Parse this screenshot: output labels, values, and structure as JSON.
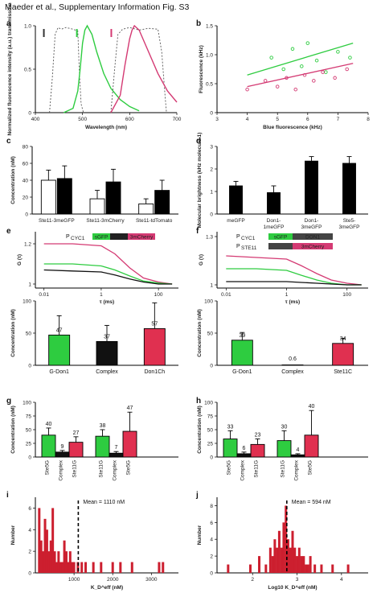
{
  "title": "Maeder et al., Supplementary Information Fig. S3",
  "panel_labels": [
    "a",
    "b",
    "c",
    "d",
    "e",
    "f",
    "g",
    "h",
    "i",
    "j"
  ],
  "colors": {
    "green": "#2ecc40",
    "red": "#e03050",
    "pink": "#d43a73",
    "black": "#111111",
    "grey": "#555555"
  },
  "chart_data": [
    {
      "panel": "a",
      "type": "line",
      "xlabel": "Wavelength (nm)",
      "ylabel": "Normalized fluorescence intensity (a.u.) transmission",
      "xlim": [
        400,
        700
      ],
      "ylim": [
        0,
        1.0
      ],
      "xticks": [
        400,
        500,
        600,
        700
      ],
      "yticks": [
        0,
        0.5,
        1.0
      ],
      "series": [
        {
          "style": "dashed",
          "x": [
            430,
            436,
            442,
            448,
            455,
            465,
            480,
            490,
            493,
            497,
            502
          ],
          "y": [
            0,
            0.4,
            0.9,
            0.98,
            0.96,
            0.98,
            0.96,
            0.94,
            0.5,
            0.1,
            0
          ]
        },
        {
          "style": "green",
          "x": [
            460,
            480,
            490,
            495,
            500,
            505,
            510,
            520,
            530,
            545,
            560,
            580,
            600,
            620
          ],
          "y": [
            0,
            0.05,
            0.25,
            0.5,
            0.8,
            0.95,
            1.0,
            0.9,
            0.7,
            0.45,
            0.28,
            0.15,
            0.07,
            0.02
          ]
        },
        {
          "style": "dashed",
          "x": [
            560,
            568,
            575,
            585,
            600,
            620,
            640,
            660,
            668,
            675,
            678
          ],
          "y": [
            0,
            0.5,
            0.9,
            0.96,
            0.98,
            0.95,
            0.97,
            0.96,
            0.7,
            0.2,
            0
          ]
        },
        {
          "style": "pink",
          "x": [
            560,
            580,
            590,
            600,
            605,
            610,
            620,
            640,
            660,
            680,
            700
          ],
          "y": [
            0,
            0.2,
            0.55,
            0.85,
            0.95,
            1.0,
            0.95,
            0.7,
            0.45,
            0.25,
            0.12
          ]
        }
      ],
      "markers": [
        {
          "x": 418,
          "color": "#333333"
        },
        {
          "x": 488,
          "color": "#2ecc40"
        },
        {
          "x": 561,
          "color": "#d43a73"
        }
      ]
    },
    {
      "panel": "b",
      "type": "scatter",
      "xlabel": "Blue fluorescence (kHz)",
      "ylabel": "Fluorescence (kHz)",
      "xlim": [
        3,
        8
      ],
      "ylim": [
        0,
        1.5
      ],
      "xticks": [
        3,
        4,
        5,
        6,
        7,
        8
      ],
      "yticks": [
        0,
        0.5,
        1.0,
        1.5
      ],
      "series": [
        {
          "color": "green",
          "x": [
            4.8,
            5.2,
            5.5,
            5.8,
            6.0,
            6.3,
            6.6,
            7.0,
            7.4
          ],
          "y": [
            0.95,
            0.75,
            1.1,
            0.8,
            1.2,
            0.9,
            0.7,
            1.05,
            0.95
          ],
          "fit": [
            [
              4,
              0.65
            ],
            [
              7.5,
              1.2
            ]
          ]
        },
        {
          "color": "pink",
          "x": [
            4.0,
            4.6,
            5.0,
            5.3,
            5.6,
            5.9,
            6.2,
            6.5,
            6.9,
            7.3
          ],
          "y": [
            0.4,
            0.55,
            0.45,
            0.6,
            0.4,
            0.65,
            0.55,
            0.7,
            0.6,
            0.75
          ],
          "fit": [
            [
              4,
              0.45
            ],
            [
              7.5,
              0.85
            ]
          ]
        }
      ]
    },
    {
      "panel": "c",
      "type": "bar",
      "ylabel": "Concentration (nM)",
      "ylim": [
        0,
        80
      ],
      "yticks": [
        0,
        20,
        40,
        60,
        80
      ],
      "groups": [
        "Ste11-3meGFP",
        "Ste11-3mCherry",
        "Ste11-tdTomato"
      ],
      "series": [
        {
          "values": [
            40,
            18,
            12
          ],
          "errors": [
            12,
            10,
            6
          ]
        },
        {
          "values": [
            42,
            38,
            28
          ],
          "errors": [
            15,
            15,
            12
          ]
        }
      ]
    },
    {
      "panel": "d",
      "type": "bar",
      "ylabel": "Molecular brightness (kHz molecule-1)",
      "ylim": [
        0,
        3
      ],
      "yticks": [
        0,
        1,
        2,
        3
      ],
      "categories": [
        "meGFP",
        "Don1-1meGFP",
        "Don1-3meGFP",
        "Ste5-3meGFP"
      ],
      "values": [
        1.25,
        0.95,
        2.35,
        2.25
      ],
      "errors": [
        0.2,
        0.3,
        0.2,
        0.3
      ]
    },
    {
      "panel": "e",
      "type": "line",
      "xlabel": "τ (ms)",
      "ylabel": "G (τ)",
      "yticks": [
        1,
        1.2
      ],
      "xticks": [
        "0.01",
        "1",
        "100"
      ],
      "legend": [
        "P",
        "CYC1",
        "sGFP",
        "DON1",
        "3mCherry"
      ],
      "series": [
        {
          "color": "pink",
          "x": [
            0.01,
            0.1,
            1,
            3,
            10,
            30,
            100,
            300
          ],
          "y": [
            1.2,
            1.2,
            1.19,
            1.15,
            1.08,
            1.03,
            1.01,
            1.0
          ]
        },
        {
          "color": "green",
          "x": [
            0.01,
            0.1,
            1,
            3,
            10,
            30,
            100,
            300
          ],
          "y": [
            1.1,
            1.1,
            1.09,
            1.07,
            1.04,
            1.015,
            1.005,
            1.0
          ]
        },
        {
          "color": "black",
          "x": [
            0.01,
            0.1,
            1,
            3,
            10,
            30,
            100,
            300
          ],
          "y": [
            1.07,
            1.065,
            1.06,
            1.045,
            1.025,
            1.01,
            1.0,
            1.0
          ]
        }
      ]
    },
    {
      "panel": "e-bar",
      "type": "bar",
      "ylabel": "Concentration (nM)",
      "ylim": [
        0,
        100
      ],
      "yticks": [
        0,
        50,
        100
      ],
      "categories": [
        "G-Don1",
        "Complex",
        "Don1Ch"
      ],
      "values": [
        47,
        37,
        57
      ],
      "errors": [
        30,
        25,
        40
      ]
    },
    {
      "panel": "f",
      "type": "line",
      "xlabel": "τ (ms)",
      "ylabel": "G (τ)",
      "yticks": [
        1,
        1.3
      ],
      "xticks": [
        "0.01",
        "1",
        "100"
      ],
      "legend": [
        "P",
        "CYC1",
        "sGFP",
        "DON1",
        "P",
        "STE11",
        "3mCherry"
      ],
      "series": [
        {
          "color": "pink",
          "x": [
            0.01,
            0.1,
            1,
            3,
            10,
            30,
            100,
            300
          ],
          "y": [
            1.18,
            1.17,
            1.16,
            1.12,
            1.07,
            1.03,
            1.01,
            1.0
          ]
        },
        {
          "color": "green",
          "x": [
            0.01,
            0.1,
            1,
            3,
            10,
            30,
            100,
            300
          ],
          "y": [
            1.1,
            1.1,
            1.09,
            1.06,
            1.03,
            1.01,
            1.0,
            1.0
          ]
        },
        {
          "color": "black",
          "x": [
            0.01,
            0.1,
            1,
            3,
            10,
            30,
            100,
            300
          ],
          "y": [
            1.02,
            1.02,
            1.02,
            1.015,
            1.01,
            1.005,
            1.0,
            1.0
          ]
        }
      ]
    },
    {
      "panel": "f-bar",
      "type": "bar",
      "ylabel": "Concentration (nM)",
      "ylim": [
        0,
        100
      ],
      "yticks": [
        0,
        50,
        100
      ],
      "categories": [
        "G-Don1",
        "Complex",
        "Ste11C"
      ],
      "values": [
        39,
        0.6,
        34
      ],
      "errors": [
        12,
        0,
        8
      ]
    },
    {
      "panel": "g",
      "type": "bar",
      "ylabel": "Concentration (nM)",
      "ylim": [
        0,
        100
      ],
      "yticks": [
        0,
        25,
        50,
        75,
        100
      ],
      "categories": [
        "Ste5G",
        "Complex",
        "Ste11G",
        "Ste11G",
        "Complex",
        "Ste5G"
      ],
      "values": [
        40,
        9,
        27,
        38,
        7,
        47
      ],
      "errors": [
        13,
        3,
        10,
        12,
        3,
        35
      ]
    },
    {
      "panel": "h",
      "type": "bar",
      "ylabel": "Concentration (nM)",
      "ylim": [
        0,
        100
      ],
      "yticks": [
        0,
        25,
        50,
        75,
        100
      ],
      "categories": [
        "Ste5G",
        "Complex",
        "Ste11G",
        "Ste11G",
        "Complex",
        "Ste5G"
      ],
      "values": [
        33,
        6,
        23,
        30,
        4,
        40
      ],
      "errors": [
        15,
        3,
        10,
        18,
        2,
        45
      ]
    },
    {
      "panel": "i",
      "type": "bar",
      "xlabel": "K_D^eff (nM)",
      "ylabel": "Number",
      "xlim": [
        0,
        3700
      ],
      "ylim": [
        0,
        7
      ],
      "xticks": [
        1000,
        2000,
        3000
      ],
      "yticks": [
        0,
        2,
        4,
        6
      ],
      "annotation": "Mean = 1110 nM",
      "mean": 1110,
      "bins": [
        100,
        150,
        200,
        250,
        300,
        350,
        400,
        450,
        500,
        550,
        600,
        650,
        700,
        750,
        800,
        850,
        900,
        950,
        1000,
        1100,
        1200,
        1300,
        1500,
        1700,
        2000,
        2200,
        2500,
        3200,
        3300
      ],
      "values": [
        6,
        3,
        2,
        5,
        4,
        2,
        3,
        6,
        2,
        1,
        2,
        1,
        1,
        3,
        2,
        1,
        2,
        1,
        1,
        1,
        1,
        1,
        1,
        1,
        1,
        1,
        1,
        1,
        1
      ]
    },
    {
      "panel": "j",
      "type": "bar",
      "xlabel": "Log10 K_D^eff (nM)",
      "ylabel": "Number",
      "xlim": [
        1.2,
        4.6
      ],
      "ylim": [
        0,
        9
      ],
      "xticks": [
        2,
        3,
        4
      ],
      "yticks": [
        0,
        2,
        4,
        6,
        8
      ],
      "annotation": "Mean = 594 nM",
      "mean": 2.77,
      "bins": [
        1.45,
        1.95,
        2.15,
        2.3,
        2.4,
        2.45,
        2.5,
        2.55,
        2.6,
        2.65,
        2.7,
        2.75,
        2.8,
        2.85,
        2.9,
        2.95,
        3.0,
        3.05,
        3.1,
        3.15,
        3.2,
        3.25,
        3.3,
        3.4,
        3.55,
        3.8,
        4.15
      ],
      "values": [
        1,
        1,
        2,
        1,
        3,
        2,
        4,
        3,
        5,
        3,
        6,
        8,
        4,
        3,
        5,
        3,
        2,
        3,
        2,
        2,
        1,
        1,
        2,
        1,
        1,
        1,
        1
      ]
    }
  ]
}
